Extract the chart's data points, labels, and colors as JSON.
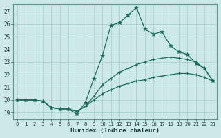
{
  "xlabel": "Humidex (Indice chaleur)",
  "xlim": [
    -0.5,
    23.5
  ],
  "ylim": [
    18.5,
    27.6
  ],
  "yticks": [
    19,
    20,
    21,
    22,
    23,
    24,
    25,
    26,
    27
  ],
  "xticks": [
    0,
    1,
    2,
    3,
    4,
    5,
    6,
    7,
    8,
    9,
    10,
    11,
    12,
    13,
    14,
    15,
    16,
    17,
    18,
    19,
    20,
    21,
    22,
    23
  ],
  "bg_color": "#cce8e8",
  "grid_color": "#b0d0d0",
  "line_color": "#1a6b5a",
  "line1_x": [
    0,
    1,
    2,
    3,
    4,
    5,
    6,
    7,
    8,
    9,
    10,
    11,
    12,
    13,
    14,
    15,
    16,
    17,
    18,
    19,
    20,
    21,
    22,
    23
  ],
  "line1_y": [
    20.0,
    20.0,
    20.0,
    19.9,
    19.4,
    19.3,
    19.3,
    19.1,
    19.5,
    20.0,
    20.5,
    20.8,
    21.1,
    21.3,
    21.5,
    21.6,
    21.8,
    21.9,
    22.0,
    22.1,
    22.1,
    22.0,
    21.8,
    21.5
  ],
  "line2_x": [
    0,
    1,
    2,
    3,
    4,
    5,
    6,
    7,
    8,
    9,
    10,
    11,
    12,
    13,
    14,
    15,
    16,
    17,
    18,
    19,
    20,
    21,
    22,
    23
  ],
  "line2_y": [
    20.0,
    20.0,
    20.0,
    19.9,
    19.4,
    19.3,
    19.3,
    19.1,
    19.5,
    20.3,
    21.2,
    21.7,
    22.2,
    22.5,
    22.8,
    23.0,
    23.2,
    23.3,
    23.4,
    23.3,
    23.2,
    23.0,
    22.5,
    21.5
  ],
  "line3_x": [
    0,
    1,
    2,
    3,
    4,
    5,
    6,
    7,
    8,
    9,
    10,
    11,
    12,
    13,
    14,
    15,
    16,
    17,
    18,
    19,
    20,
    21,
    22,
    23
  ],
  "line3_y": [
    20.0,
    20.0,
    20.0,
    19.9,
    19.4,
    19.3,
    19.3,
    18.9,
    19.8,
    21.7,
    23.5,
    25.9,
    26.1,
    26.7,
    27.3,
    25.6,
    25.2,
    25.4,
    24.3,
    23.8,
    23.6,
    22.9,
    22.5,
    21.5
  ]
}
